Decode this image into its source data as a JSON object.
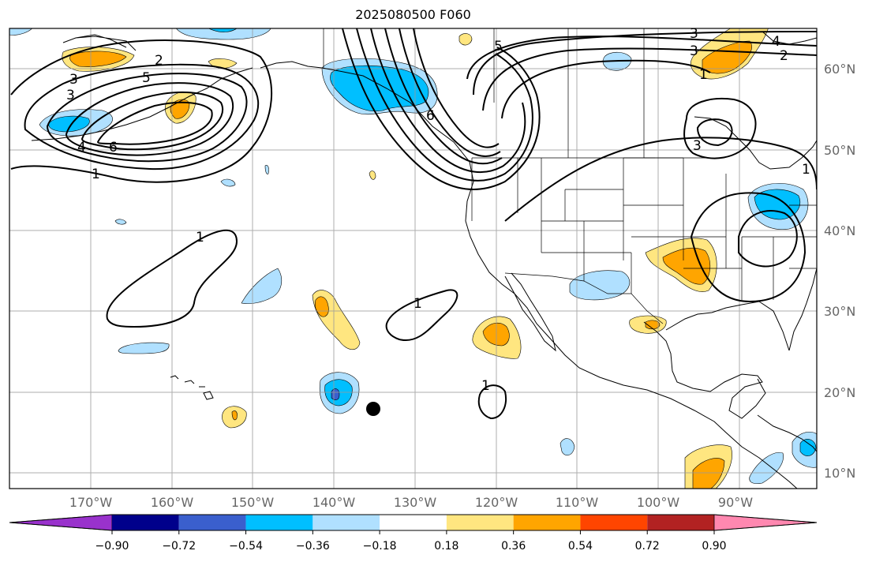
{
  "title": "2025080500 F060",
  "lon_labels": [
    "170°W",
    "160°W",
    "150°W",
    "140°W",
    "130°W",
    "120°W",
    "110°W",
    "100°W",
    "90°W"
  ],
  "lat_labels": [
    "60°N",
    "50°N",
    "40°N",
    "30°N",
    "20°N",
    "10°N"
  ],
  "colorbar": {
    "colors": [
      "#9932cc",
      "#00008b",
      "#3a5fcd",
      "#00bfff",
      "#b0e0ff",
      "#ffffff",
      "#ffe680",
      "#ffa500",
      "#ff4500",
      "#b22222",
      "#ff88b0"
    ],
    "ticks": [
      "−0.90",
      "−0.72",
      "−0.54",
      "−0.36",
      "−0.18",
      "0.18",
      "0.36",
      "0.54",
      "0.72",
      "0.90"
    ]
  },
  "contour_labels": [
    "2",
    "3",
    "5",
    "1",
    "3",
    "4",
    "6",
    "5",
    "3",
    "3",
    "2",
    "4",
    "1",
    "6",
    "3",
    "1",
    "1",
    "1",
    "1"
  ],
  "fill_colors": {
    "neg_light": "#b0e0ff",
    "neg_mid": "#00bfff",
    "neg_deep": "#3a5fcd",
    "pos_light": "#ffe680",
    "pos_mid": "#ffa500"
  },
  "marker_color": "#000000"
}
